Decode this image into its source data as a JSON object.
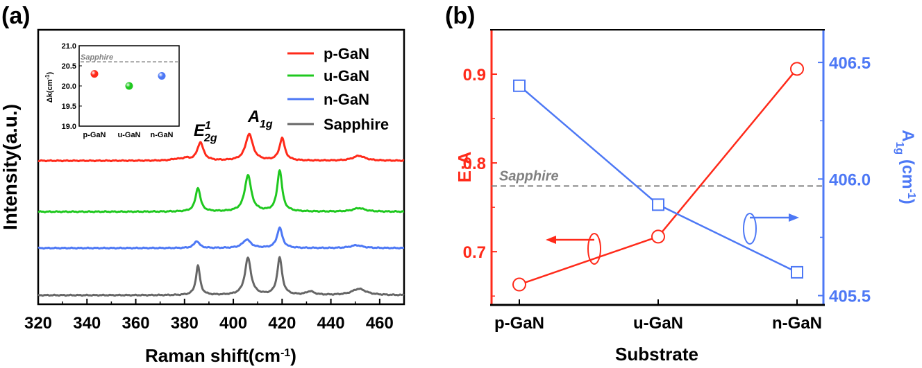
{
  "colors": {
    "p": "#ff2a1a",
    "u": "#1fc81f",
    "n": "#4d78f5",
    "sapphire": "#666666",
    "dash": "#808080",
    "ea": "#ff2a1a",
    "a1g": "#4d78f5"
  },
  "labels": {
    "panel_a": "(a)",
    "panel_b": "(b)",
    "e2g_main": "E",
    "e2g_sub": "2g",
    "e2g_sup": "1",
    "a1g_main": "A",
    "a1g_sub": "1g",
    "inset_sapphire": "Sapphire",
    "sapphire_b": "Sapphire",
    "b_right_main": "A",
    "b_right_sub": "1g",
    "b_right_rest": " (cm",
    "b_right_sup": "-1",
    "b_right_close": ")",
    "xlabel_a_main": "Raman shift(cm",
    "xlabel_a_sup": "-1",
    "xlabel_a_close": ")",
    "inset_ylabel_main": "Δk(cm",
    "inset_ylabel_sup": "-1",
    "inset_ylabel_close": ")"
  },
  "chart_data": [
    {
      "type": "line",
      "panel": "a",
      "xlabel": "Raman shift(cm-1)",
      "ylabel": "Intensity(a.u.)",
      "xlim": [
        320,
        470
      ],
      "xticks": [
        "320",
        "340",
        "360",
        "380",
        "400",
        "420",
        "440",
        "460"
      ],
      "series": [
        {
          "name": "p-GaN",
          "color": "#ff2a1a",
          "baseline": 0.02,
          "peaks": [
            [
              386.5,
              0.26,
              1.5
            ],
            [
              406.5,
              0.38,
              1.8
            ],
            [
              420.0,
              0.32,
              1.3
            ],
            [
              451.5,
              0.07,
              3.0
            ],
            [
              380.5,
              0.03,
              1.5
            ],
            [
              376.5,
              0.02,
              2.5
            ]
          ]
        },
        {
          "name": "u-GaN",
          "color": "#1fc81f",
          "baseline": -0.005,
          "peaks": [
            [
              385.5,
              0.34,
              1.2
            ],
            [
              406.0,
              0.52,
              1.6
            ],
            [
              419.0,
              0.59,
              1.2
            ],
            [
              451.5,
              0.05,
              3.0
            ]
          ]
        },
        {
          "name": "n-GaN",
          "color": "#4d78f5",
          "baseline": 0.0,
          "peaks": [
            [
              385.0,
              0.1,
              1.3
            ],
            [
              405.5,
              0.12,
              2.0
            ],
            [
              419.0,
              0.29,
              1.3
            ],
            [
              450.5,
              0.04,
              3.0
            ]
          ]
        },
        {
          "name": "Sapphire",
          "color": "#666666",
          "baseline": 0.01,
          "peaks": [
            [
              385.5,
              0.42,
              1.0
            ],
            [
              406.0,
              0.53,
              1.5
            ],
            [
              419.0,
              0.53,
              1.2
            ],
            [
              431.5,
              0.05,
              2.0
            ],
            [
              451.5,
              0.09,
              3.5
            ]
          ]
        }
      ],
      "legend": {
        "position": "top-right",
        "entries": [
          "p-GaN",
          "u-GaN",
          "n-GaN",
          "Sapphire"
        ]
      },
      "annotations": [
        "E2g1",
        "A1g"
      ]
    },
    {
      "type": "scatter",
      "panel": "a-inset",
      "categories": [
        "p-GaN",
        "u-GaN",
        "n-GaN"
      ],
      "values": [
        20.3,
        20.0,
        20.25
      ],
      "colors": [
        "#ff2a1a",
        "#1fc81f",
        "#4d78f5"
      ],
      "ylim": [
        19.0,
        21.0
      ],
      "yticks": [
        "19.0",
        "19.5",
        "20.0",
        "20.5",
        "21.0"
      ],
      "ylabel": "Δk(cm-1)",
      "reference": {
        "label": "Sapphire",
        "value": 20.6
      }
    },
    {
      "type": "line",
      "panel": "b",
      "categories": [
        "p-GaN",
        "u-GaN",
        "n-GaN"
      ],
      "xlabel": "Substrate",
      "series": [
        {
          "name": "E:A",
          "axis": "left",
          "color": "#ff2a1a",
          "marker": "circle",
          "values": [
            0.663,
            0.717,
            0.906
          ]
        },
        {
          "name": "A1g (cm-1)",
          "axis": "right",
          "color": "#4d78f5",
          "marker": "square",
          "values": [
            406.4,
            405.89,
            405.6
          ]
        }
      ],
      "left_axis": {
        "label": "E:A",
        "ylim": [
          0.64,
          0.95
        ],
        "ticks": [
          "0.7",
          "0.8",
          "0.9"
        ]
      },
      "right_axis": {
        "label": "A1g (cm-1)",
        "ylim": [
          405.46,
          406.64
        ],
        "ticks": [
          "405.5",
          "406.0",
          "406.5"
        ]
      },
      "reference": {
        "label": "Sapphire",
        "value": 0.774
      }
    }
  ]
}
